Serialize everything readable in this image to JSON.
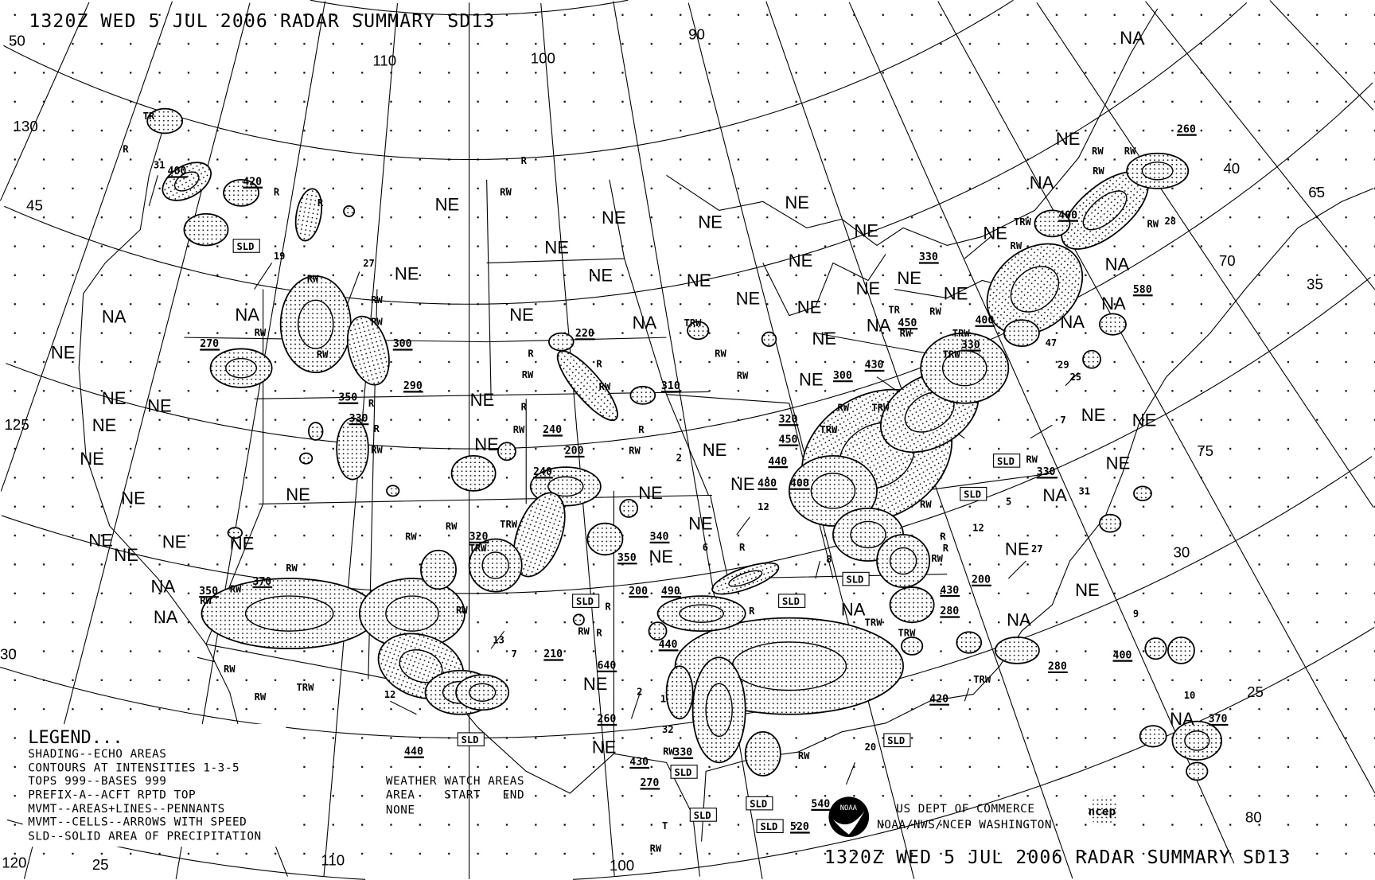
{
  "title_top": "1320Z WED  5 JUL 2006 RADAR SUMMARY SD13",
  "title_bottom": "1320Z WED  5 JUL 2006 RADAR SUMMARY SD13",
  "legend": {
    "heading": "LEGEND...",
    "lines": [
      "SHADING--ECHO AREAS",
      "CONTOURS AT INTENSITIES 1-3-5",
      "TOPS 999--BASES 999",
      "PREFIX-A--ACFT RPTD TOP",
      "MVMT--AREAS+LINES--PENNANTS",
      "MVMT--CELLS--ARROWS WITH SPEED",
      "SLD--SOLID AREA OF PRECIPITATION"
    ]
  },
  "watch": {
    "heading": "WEATHER WATCH AREAS",
    "columns": "AREA    START   END",
    "value": "NONE"
  },
  "credits": {
    "line1": "US DEPT OF COMMERCE",
    "line2": "NOAA/NWS/NCEP WASHINGTON",
    "noaa_logo": "NOAA",
    "ncep_logo": "ncep"
  },
  "grid_labels": [
    "50",
    "130",
    "45",
    "125",
    "30",
    "120",
    "25",
    "110",
    "100",
    "90",
    "100",
    "110",
    "40",
    "65",
    "70",
    "35",
    "75",
    "30",
    "25",
    "80"
  ],
  "area_labels": [
    "NE",
    "NE",
    "NE",
    "NE",
    "NE",
    "NE",
    "NA",
    "NA",
    "NE",
    "NE",
    "NE",
    "NE",
    "NE",
    "NE",
    "NE",
    "NE",
    "NE",
    "NE",
    "NE",
    "NE",
    "NE",
    "NE",
    "NA",
    "NE",
    "NE",
    "NE",
    "NE",
    "NE",
    "NE",
    "NE",
    "NE",
    "NE",
    "NE",
    "NE",
    "NE",
    "NA",
    "NE",
    "NA",
    "NA",
    "NE",
    "NA",
    "NA",
    "NA",
    "NE",
    "NE",
    "NE",
    "NA",
    "NE",
    "NE",
    "NA",
    "NA",
    "NE",
    "NE",
    "NE",
    "NE",
    "NE",
    "NE",
    "NA",
    "NA",
    "NA"
  ],
  "precip_labels": [
    "TR",
    "R",
    "R",
    "R",
    "RW",
    "R",
    "31",
    "19",
    "27",
    "RW",
    "RW",
    "RW",
    "RW",
    "RW",
    "R",
    "RW",
    "R",
    "R",
    "RW",
    "R",
    "RW",
    "R",
    "RW",
    "R",
    "RW",
    "2",
    "TRW",
    "RW",
    "RW",
    "TRW",
    "TRW",
    "RW",
    "RW",
    "RW",
    "RW",
    "RW",
    "RW",
    "TRW",
    "RW",
    "12",
    "13",
    "7",
    "RW",
    "RW",
    "R",
    "R",
    "1",
    "2",
    "32",
    "RW",
    "T",
    "RW",
    "RW",
    "20",
    "8",
    "12",
    "6",
    "R",
    "R",
    "TRW",
    "TRW",
    "TRW",
    "9",
    "10",
    "12",
    "5",
    "7",
    "25",
    "31",
    "27",
    "28",
    "29",
    "R",
    "RW",
    "RW",
    "RW",
    "RW",
    "TRW",
    "TRW",
    "TR",
    "RW",
    "RW",
    "TRW",
    "TRW",
    "RW",
    "RW",
    "RW",
    "TRW",
    "RW",
    "RW",
    "47",
    "R",
    "RW"
  ],
  "tops": [
    "400",
    "420",
    "270",
    "300",
    "290",
    "350",
    "330",
    "220",
    "310",
    "240",
    "200",
    "240",
    "320",
    "350",
    "340",
    "200",
    "490",
    "210",
    "640",
    "260",
    "440",
    "430",
    "270",
    "330",
    "540",
    "520",
    "440",
    "350",
    "370",
    "480",
    "400",
    "440",
    "450",
    "320",
    "300",
    "430",
    "450",
    "330",
    "400",
    "330",
    "400",
    "260",
    "580",
    "330",
    "430",
    "280",
    "200",
    "420",
    "280",
    "400",
    "370"
  ],
  "sld_label": "SLD",
  "sld_count": 12,
  "colors": {
    "ink": "#000000",
    "background": "#ffffff"
  }
}
